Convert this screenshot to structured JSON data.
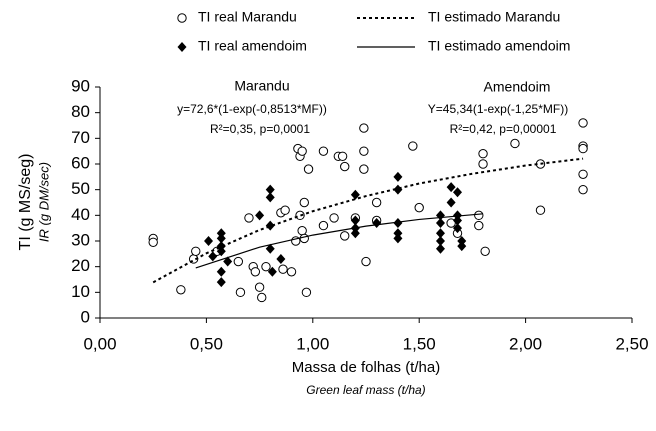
{
  "chart_data": {
    "type": "scatter",
    "xlabel": "Massa de folhas (t/ha)",
    "xlabel_sub": "Green leaf mass (t/ha)",
    "ylabel": "TI (g MS/seg)",
    "ylabel_sub": "IR (g DM/sec)",
    "annotations": [
      "Marandu",
      "y=72,6*(1-exp(-0,8513*MF))",
      "R²=0,35, p=0,0001",
      "Amendoim",
      "Y=45,34(1-exp(-1,25*MF))",
      "R²=0,42, p=0,00001"
    ],
    "xlim": [
      0,
      2.5
    ],
    "xticks": [
      {
        "value": 0,
        "label": "0,00"
      },
      {
        "value": 0.5,
        "label": "0,50"
      },
      {
        "value": 1,
        "label": "1,00"
      },
      {
        "value": 1.5,
        "label": "1,50"
      },
      {
        "value": 2,
        "label": "2,00"
      },
      {
        "value": 2.5,
        "label": "2,50"
      }
    ],
    "ylim": [
      0,
      90
    ],
    "yticks": [
      0,
      10,
      20,
      30,
      40,
      50,
      60,
      70,
      80,
      90
    ],
    "grid": false,
    "series": [
      {
        "name": "TI real Marandu",
        "kind": "points",
        "marker": "circle",
        "color": "#000000",
        "x": [
          0.25,
          0.25,
          0.38,
          0.44,
          0.45,
          0.55,
          0.65,
          0.66,
          0.7,
          0.72,
          0.73,
          0.75,
          0.76,
          0.78,
          0.85,
          0.87,
          0.86,
          0.9,
          0.92,
          0.93,
          0.94,
          0.95,
          0.94,
          0.95,
          0.96,
          0.96,
          0.97,
          0.98,
          1.05,
          1.05,
          1.1,
          1.12,
          1.14,
          1.15,
          1.15,
          1.2,
          1.24,
          1.24,
          1.24,
          1.25,
          1.3,
          1.3,
          1.47,
          1.5,
          1.65,
          1.68,
          1.78,
          1.78,
          1.8,
          1.8,
          1.81,
          1.95,
          2.07,
          2.07,
          2.27,
          2.27,
          2.27,
          2.27,
          2.27
        ],
        "values": [
          31,
          29.5,
          11,
          23,
          26,
          26,
          22,
          10,
          39,
          20,
          18,
          12,
          8,
          20,
          41,
          42,
          19,
          18,
          30,
          66,
          63,
          65,
          40,
          34,
          45,
          31,
          10,
          58,
          65,
          36,
          39,
          63,
          63,
          59,
          32,
          39,
          74,
          65,
          58,
          22,
          45,
          38,
          67,
          43,
          37,
          33,
          36,
          40,
          64,
          60,
          26,
          68,
          60,
          42,
          76,
          67,
          66,
          56,
          50
        ]
      },
      {
        "name": "TI estimado Marandu",
        "kind": "line",
        "dash": "dotted",
        "color": "#000000",
        "x": [
          0.25,
          0.5,
          0.75,
          1.0,
          1.25,
          1.5,
          1.75,
          2.0,
          2.27
        ],
        "values": [
          13.9,
          25.2,
          34.3,
          41.6,
          47.5,
          52.4,
          56.2,
          59.4,
          62.1
        ]
      },
      {
        "name": "TI real amendoim",
        "kind": "points",
        "marker": "diamond",
        "color": "#000000",
        "x": [
          0.51,
          0.53,
          0.57,
          0.57,
          0.57,
          0.57,
          0.57,
          0.57,
          0.6,
          0.75,
          0.8,
          0.8,
          0.8,
          0.8,
          0.81,
          0.85,
          1.2,
          1.2,
          1.2,
          1.2,
          1.3,
          1.4,
          1.4,
          1.4,
          1.4,
          1.4,
          1.6,
          1.6,
          1.6,
          1.6,
          1.6,
          1.65,
          1.65,
          1.68,
          1.68,
          1.68,
          1.68,
          1.7,
          1.7
        ],
        "values": [
          30,
          24,
          33,
          31,
          28,
          26,
          18,
          14,
          22,
          40,
          50,
          47,
          36,
          27,
          18,
          23,
          48,
          38,
          35,
          33,
          37,
          55,
          50,
          37,
          33,
          31,
          40,
          37,
          33,
          30,
          27,
          51,
          45,
          49,
          40,
          38,
          35,
          30,
          28
        ]
      },
      {
        "name": "TI estimado amendoim",
        "kind": "line",
        "dash": "solid",
        "color": "#000000",
        "x": [
          0.45,
          0.75,
          1.0,
          1.25,
          1.5,
          1.8
        ],
        "values": [
          19.5,
          27.6,
          32.3,
          35.8,
          38.4,
          40.6
        ]
      }
    ]
  }
}
